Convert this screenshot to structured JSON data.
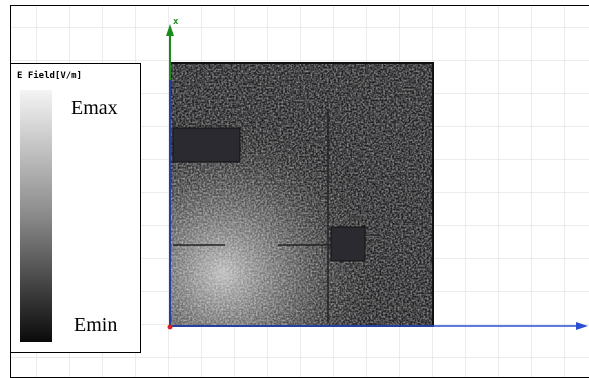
{
  "legend": {
    "title": "E Field[V/m]",
    "max": "Emax",
    "min": "Emin"
  },
  "axes": {
    "vertical_label": "x"
  }
}
